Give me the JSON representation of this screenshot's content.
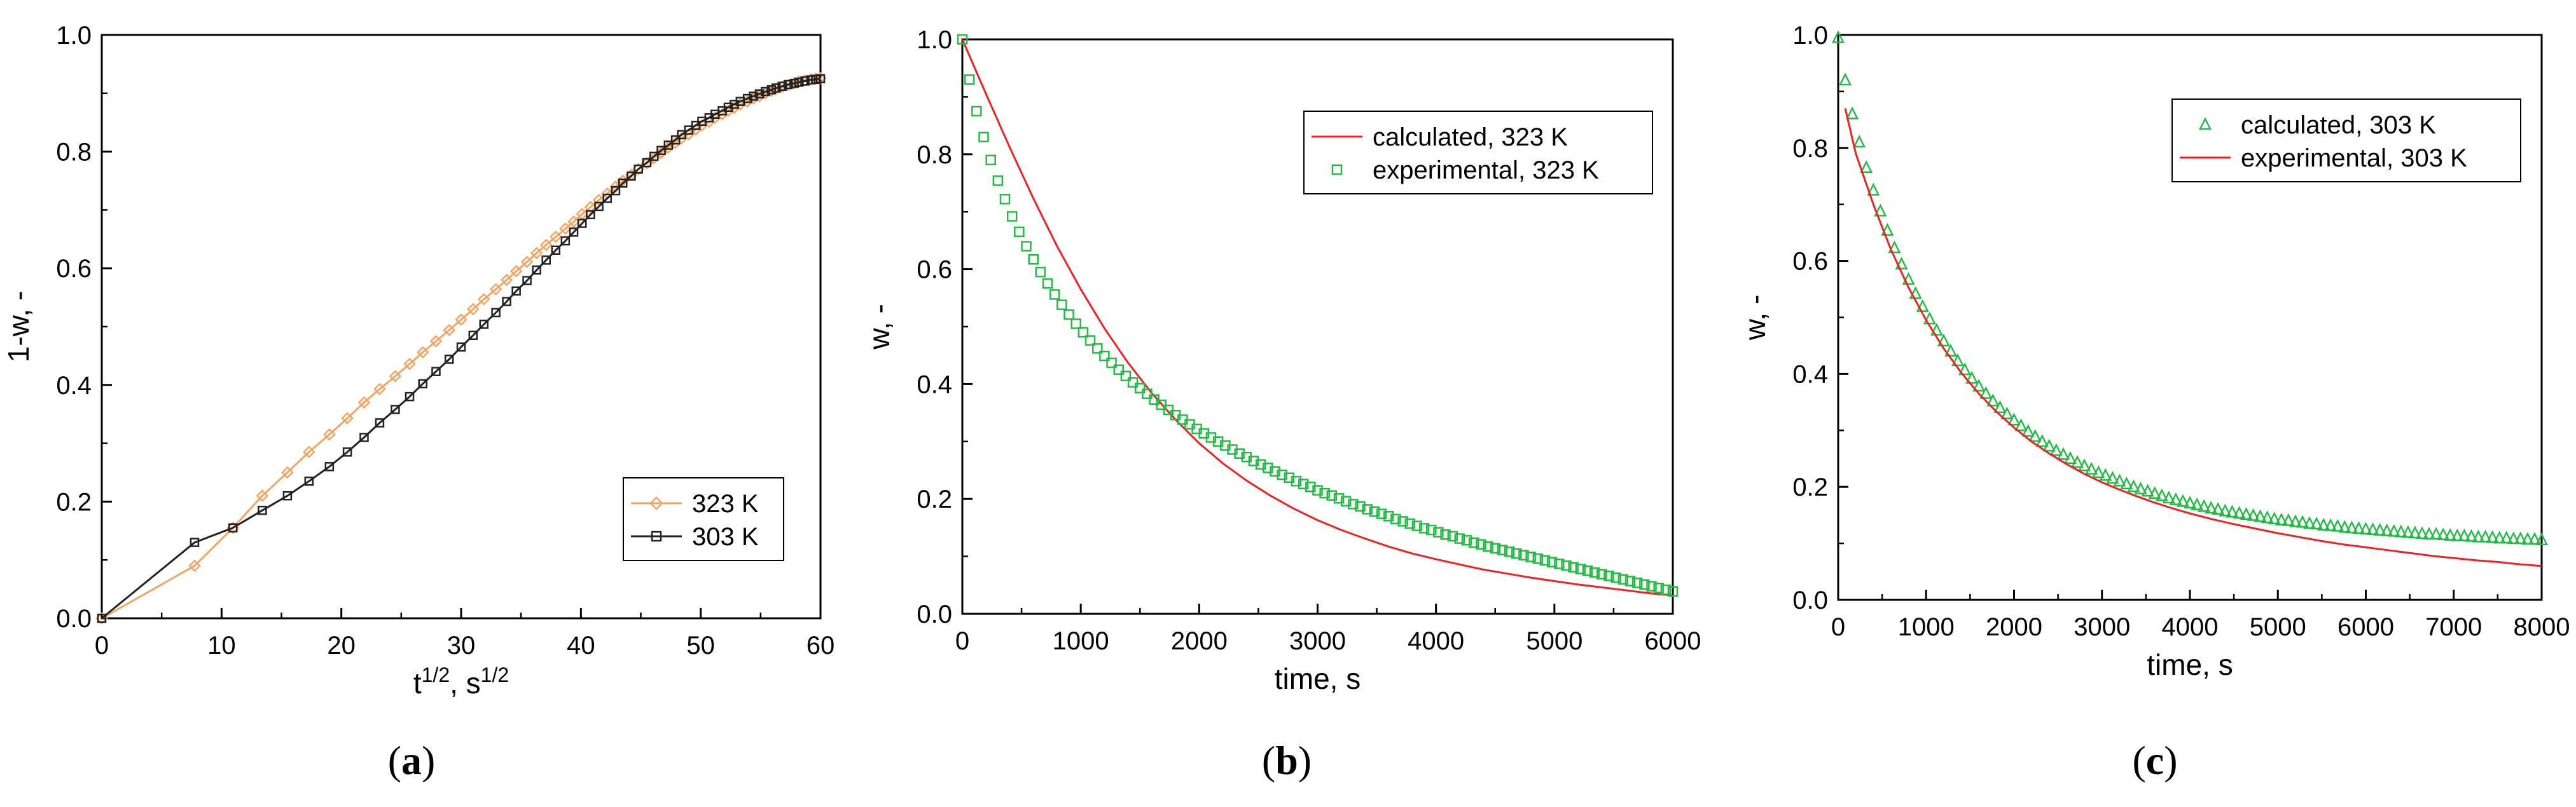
{
  "figure": {
    "panels": [
      {
        "label_open": "(",
        "label_letter": "a",
        "label_close": ")"
      },
      {
        "label_open": "(",
        "label_letter": "b",
        "label_close": ")"
      },
      {
        "label_open": "(",
        "label_letter": "c",
        "label_close": ")"
      }
    ]
  },
  "chart_data": [
    {
      "type": "line",
      "id": "a",
      "xlabel_base": "t",
      "xlabel_sup1": "1/2",
      "xlabel_mid": ", s",
      "xlabel_sup2": "1/2",
      "ylabel": "1-w, -",
      "xlim": [
        0,
        60
      ],
      "ylim": [
        0,
        1.0
      ],
      "xticks": [
        0,
        10,
        20,
        30,
        40,
        50,
        60
      ],
      "yticks": [
        0.0,
        0.2,
        0.4,
        0.6,
        0.8,
        1.0
      ],
      "ytick_labels": [
        "0.0",
        "0.2",
        "0.4",
        "0.6",
        "0.8",
        "1.0"
      ],
      "legend_position": "bottom-right",
      "series": [
        {
          "name": "323 K",
          "color": "#f4a460",
          "marker": "diamond",
          "x": [
            0,
            7.75,
            10.95,
            13.4,
            15.5,
            17.3,
            19.0,
            20.5,
            21.9,
            23.2,
            24.5,
            25.7,
            26.8,
            27.9,
            29.0,
            30.0,
            31.0,
            31.9,
            32.9,
            33.8,
            34.6,
            35.5,
            36.3,
            37.1,
            37.9,
            38.7,
            39.4,
            40.1,
            40.8,
            41.5,
            42.2,
            42.9,
            43.5,
            44.2,
            44.8,
            45.5,
            46.1,
            46.7,
            47.3,
            47.9,
            48.4,
            49.0,
            49.6,
            50.1,
            50.7,
            51.2,
            51.8,
            52.3,
            52.8,
            53.3,
            53.9,
            54.4,
            54.9,
            55.4,
            55.9,
            56.3,
            56.8,
            57.3,
            57.8,
            58.2,
            58.7,
            59.2,
            59.6,
            60.0
          ],
          "y": [
            0,
            0.09,
            0.155,
            0.21,
            0.25,
            0.285,
            0.315,
            0.343,
            0.37,
            0.393,
            0.415,
            0.436,
            0.456,
            0.475,
            0.494,
            0.512,
            0.53,
            0.547,
            0.564,
            0.58,
            0.595,
            0.611,
            0.626,
            0.64,
            0.654,
            0.668,
            0.68,
            0.693,
            0.705,
            0.717,
            0.728,
            0.74,
            0.75,
            0.76,
            0.77,
            0.78,
            0.789,
            0.798,
            0.807,
            0.815,
            0.823,
            0.83,
            0.838,
            0.845,
            0.851,
            0.858,
            0.864,
            0.87,
            0.875,
            0.881,
            0.886,
            0.891,
            0.895,
            0.9,
            0.904,
            0.908,
            0.911,
            0.914,
            0.917,
            0.92,
            0.922,
            0.924,
            0.925,
            0.926
          ]
        },
        {
          "name": "303 K",
          "color": "#222222",
          "marker": "square",
          "x": [
            0,
            7.75,
            10.95,
            13.4,
            15.5,
            17.3,
            19.0,
            20.5,
            21.9,
            23.2,
            24.5,
            25.7,
            26.8,
            27.9,
            29.0,
            30.0,
            31.0,
            31.9,
            32.9,
            33.8,
            34.6,
            35.5,
            36.3,
            37.1,
            37.9,
            38.7,
            39.4,
            40.1,
            40.8,
            41.5,
            42.2,
            42.9,
            43.5,
            44.2,
            44.8,
            45.5,
            46.1,
            46.7,
            47.3,
            47.9,
            48.4,
            49.0,
            49.6,
            50.1,
            50.7,
            51.2,
            51.8,
            52.3,
            52.8,
            53.3,
            53.9,
            54.4,
            54.9,
            55.4,
            55.9,
            56.3,
            56.8,
            57.3,
            57.8,
            58.2,
            58.7,
            59.2,
            59.6,
            60.0
          ],
          "y": [
            0,
            0.13,
            0.155,
            0.185,
            0.21,
            0.235,
            0.26,
            0.285,
            0.31,
            0.335,
            0.358,
            0.38,
            0.402,
            0.423,
            0.444,
            0.465,
            0.485,
            0.504,
            0.524,
            0.543,
            0.561,
            0.579,
            0.597,
            0.614,
            0.631,
            0.647,
            0.662,
            0.677,
            0.692,
            0.706,
            0.72,
            0.733,
            0.746,
            0.758,
            0.77,
            0.781,
            0.792,
            0.802,
            0.811,
            0.82,
            0.829,
            0.837,
            0.845,
            0.852,
            0.858,
            0.864,
            0.87,
            0.876,
            0.881,
            0.886,
            0.891,
            0.895,
            0.899,
            0.903,
            0.906,
            0.909,
            0.912,
            0.915,
            0.917,
            0.919,
            0.921,
            0.923,
            0.924,
            0.925
          ]
        }
      ]
    },
    {
      "type": "line+scatter",
      "id": "b",
      "xlabel": "time, s",
      "ylabel": "w, -",
      "xlim": [
        0,
        6000
      ],
      "ylim": [
        0,
        1.0
      ],
      "xticks": [
        0,
        1000,
        2000,
        3000,
        4000,
        5000,
        6000
      ],
      "yticks": [
        0.0,
        0.2,
        0.4,
        0.6,
        0.8,
        1.0
      ],
      "ytick_labels": [
        "0.0",
        "0.2",
        "0.4",
        "0.6",
        "0.8",
        "1.0"
      ],
      "legend_position": "top-right",
      "series": [
        {
          "name": "calculated, 323 K",
          "color": "#ee2222",
          "style": "line",
          "x": [
            0,
            200,
            400,
            600,
            800,
            1000,
            1200,
            1400,
            1600,
            1800,
            2000,
            2200,
            2400,
            2600,
            2800,
            3000,
            3200,
            3400,
            3600,
            3800,
            4000,
            4200,
            4400,
            4600,
            4800,
            5000,
            5200,
            5400,
            5600,
            5800,
            6000
          ],
          "y": [
            1.0,
            0.905,
            0.812,
            0.723,
            0.64,
            0.565,
            0.497,
            0.437,
            0.384,
            0.338,
            0.297,
            0.262,
            0.232,
            0.206,
            0.183,
            0.163,
            0.146,
            0.131,
            0.117,
            0.105,
            0.095,
            0.086,
            0.077,
            0.07,
            0.063,
            0.057,
            0.051,
            0.046,
            0.041,
            0.036,
            0.032
          ]
        },
        {
          "name": "experimental, 323 K",
          "color": "#22bb44",
          "style": "marker",
          "marker": "square",
          "x": [
            0,
            60,
            120,
            180,
            240,
            300,
            360,
            420,
            480,
            540,
            600,
            660,
            720,
            780,
            840,
            900,
            960,
            1020,
            1080,
            1140,
            1200,
            1260,
            1320,
            1380,
            1440,
            1500,
            1560,
            1620,
            1680,
            1740,
            1800,
            1860,
            1920,
            1980,
            2040,
            2100,
            2160,
            2220,
            2280,
            2340,
            2400,
            2460,
            2520,
            2580,
            2640,
            2700,
            2760,
            2820,
            2880,
            2940,
            3000,
            3060,
            3120,
            3180,
            3240,
            3300,
            3360,
            3420,
            3480,
            3540,
            3600,
            3660,
            3720,
            3780,
            3840,
            3900,
            3960,
            4020,
            4080,
            4140,
            4200,
            4260,
            4320,
            4380,
            4440,
            4500,
            4560,
            4620,
            4680,
            4740,
            4800,
            4860,
            4920,
            4980,
            5040,
            5100,
            5160,
            5220,
            5280,
            5340,
            5400,
            5460,
            5520,
            5580,
            5640,
            5700,
            5760,
            5820,
            5880,
            5940,
            6000
          ],
          "y": [
            1.0,
            0.93,
            0.875,
            0.83,
            0.79,
            0.754,
            0.722,
            0.692,
            0.665,
            0.64,
            0.617,
            0.595,
            0.575,
            0.556,
            0.538,
            0.521,
            0.505,
            0.49,
            0.476,
            0.462,
            0.449,
            0.437,
            0.425,
            0.414,
            0.403,
            0.393,
            0.383,
            0.373,
            0.364,
            0.355,
            0.346,
            0.338,
            0.33,
            0.322,
            0.314,
            0.307,
            0.3,
            0.293,
            0.286,
            0.279,
            0.273,
            0.266,
            0.26,
            0.254,
            0.248,
            0.242,
            0.237,
            0.231,
            0.226,
            0.221,
            0.215,
            0.21,
            0.206,
            0.201,
            0.196,
            0.191,
            0.187,
            0.182,
            0.178,
            0.174,
            0.17,
            0.165,
            0.161,
            0.157,
            0.153,
            0.149,
            0.146,
            0.142,
            0.138,
            0.135,
            0.131,
            0.128,
            0.124,
            0.121,
            0.117,
            0.114,
            0.111,
            0.108,
            0.105,
            0.102,
            0.099,
            0.096,
            0.093,
            0.09,
            0.087,
            0.084,
            0.081,
            0.078,
            0.075,
            0.072,
            0.069,
            0.066,
            0.063,
            0.06,
            0.057,
            0.054,
            0.051,
            0.048,
            0.045,
            0.042,
            0.039
          ]
        }
      ]
    },
    {
      "type": "line+scatter",
      "id": "c",
      "xlabel": "time, s",
      "ylabel": "w, -",
      "xlim": [
        0,
        8000
      ],
      "ylim": [
        0,
        1.0
      ],
      "xticks": [
        0,
        1000,
        2000,
        3000,
        4000,
        5000,
        6000,
        7000,
        8000
      ],
      "yticks": [
        0.0,
        0.2,
        0.4,
        0.6,
        0.8,
        1.0
      ],
      "ytick_labels": [
        "0.0",
        "0.2",
        "0.4",
        "0.6",
        "0.8",
        "1.0"
      ],
      "legend_position": "top-right",
      "series": [
        {
          "name": "calculated, 303 K",
          "color": "#22bb44",
          "style": "marker",
          "marker": "triangle",
          "x": [
            0,
            80,
            160,
            240,
            320,
            400,
            480,
            560,
            640,
            720,
            800,
            880,
            960,
            1040,
            1120,
            1200,
            1280,
            1360,
            1440,
            1520,
            1600,
            1680,
            1760,
            1840,
            1920,
            2000,
            2080,
            2160,
            2240,
            2320,
            2400,
            2480,
            2560,
            2640,
            2720,
            2800,
            2880,
            2960,
            3040,
            3120,
            3200,
            3280,
            3360,
            3440,
            3520,
            3600,
            3680,
            3760,
            3840,
            3920,
            4000,
            4080,
            4160,
            4240,
            4320,
            4400,
            4480,
            4560,
            4640,
            4720,
            4800,
            4880,
            4960,
            5040,
            5120,
            5200,
            5280,
            5360,
            5440,
            5520,
            5600,
            5680,
            5760,
            5840,
            5920,
            6000,
            6080,
            6160,
            6240,
            6320,
            6400,
            6480,
            6560,
            6640,
            6720,
            6800,
            6880,
            6960,
            7040,
            7120,
            7200,
            7280,
            7360,
            7440,
            7520,
            7600,
            7680,
            7760,
            7840,
            7920,
            8000
          ],
          "y": [
            0.995,
            0.92,
            0.86,
            0.81,
            0.765,
            0.725,
            0.688,
            0.654,
            0.623,
            0.594,
            0.567,
            0.542,
            0.519,
            0.497,
            0.477,
            0.458,
            0.44,
            0.423,
            0.407,
            0.392,
            0.378,
            0.365,
            0.352,
            0.34,
            0.329,
            0.318,
            0.308,
            0.298,
            0.289,
            0.28,
            0.272,
            0.264,
            0.257,
            0.25,
            0.243,
            0.237,
            0.231,
            0.225,
            0.22,
            0.215,
            0.21,
            0.205,
            0.2,
            0.196,
            0.192,
            0.188,
            0.184,
            0.18,
            0.177,
            0.174,
            0.171,
            0.168,
            0.165,
            0.162,
            0.16,
            0.157,
            0.155,
            0.153,
            0.151,
            0.149,
            0.147,
            0.145,
            0.143,
            0.141,
            0.14,
            0.138,
            0.137,
            0.135,
            0.134,
            0.132,
            0.131,
            0.13,
            0.128,
            0.127,
            0.126,
            0.125,
            0.124,
            0.123,
            0.122,
            0.121,
            0.12,
            0.119,
            0.118,
            0.117,
            0.116,
            0.116,
            0.115,
            0.114,
            0.113,
            0.113,
            0.112,
            0.111,
            0.111,
            0.11,
            0.109,
            0.109,
            0.108,
            0.108,
            0.107,
            0.107,
            0.106
          ]
        },
        {
          "name": "experimental, 303 K",
          "color": "#ee2222",
          "style": "line",
          "x": [
            80,
            200,
            400,
            600,
            800,
            1000,
            1200,
            1400,
            1600,
            1800,
            2000,
            2200,
            2400,
            2600,
            2800,
            3000,
            3200,
            3400,
            3600,
            3800,
            4000,
            4250,
            4500,
            4750,
            5000,
            5250,
            5500,
            5750,
            6000,
            6250,
            6500,
            6750,
            7000,
            7250,
            7500,
            7750,
            8000
          ],
          "y": [
            0.87,
            0.79,
            0.7,
            0.62,
            0.553,
            0.495,
            0.445,
            0.402,
            0.365,
            0.333,
            0.305,
            0.28,
            0.259,
            0.24,
            0.223,
            0.208,
            0.195,
            0.183,
            0.172,
            0.162,
            0.153,
            0.143,
            0.134,
            0.126,
            0.118,
            0.111,
            0.104,
            0.098,
            0.093,
            0.088,
            0.083,
            0.078,
            0.074,
            0.07,
            0.067,
            0.063,
            0.06
          ]
        }
      ]
    }
  ]
}
